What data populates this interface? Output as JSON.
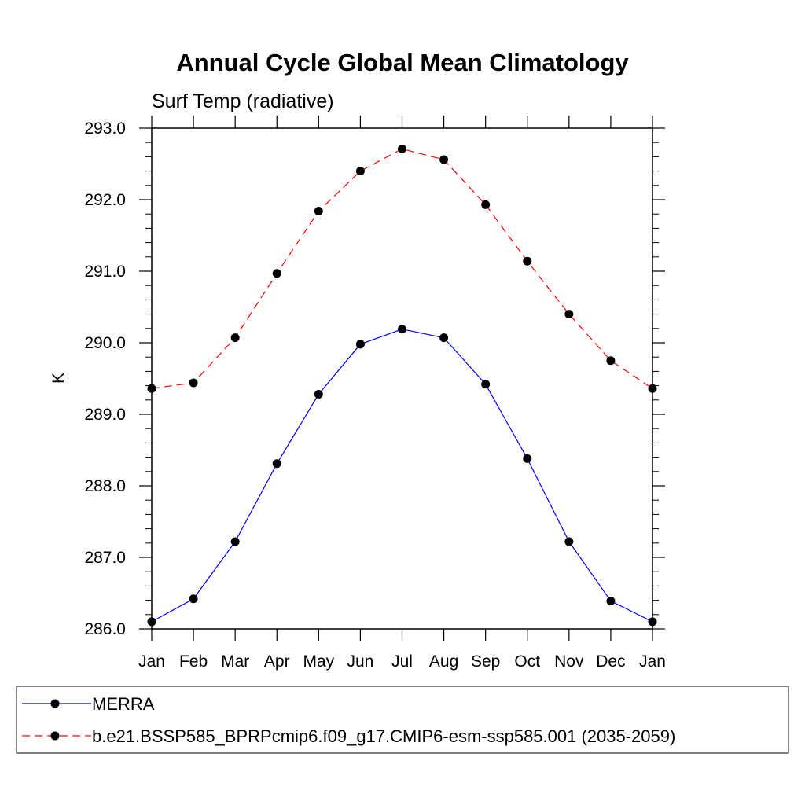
{
  "chart_data": {
    "type": "line",
    "title": "Annual Cycle Global Mean Climatology",
    "subtitle": "Surf Temp (radiative)",
    "xlabel": "",
    "ylabel": "K",
    "categories": [
      "Jan",
      "Feb",
      "Mar",
      "Apr",
      "May",
      "Jun",
      "Jul",
      "Aug",
      "Sep",
      "Oct",
      "Nov",
      "Dec",
      "Jan"
    ],
    "ylim": [
      286.0,
      293.0
    ],
    "yticks": [
      "286.0",
      "287.0",
      "288.0",
      "289.0",
      "290.0",
      "291.0",
      "292.0",
      "293.0"
    ],
    "grid": false,
    "legend_position": "bottom",
    "series": [
      {
        "name": "MERRA",
        "color": "#0000ff",
        "dash": "solid",
        "marker": "filled-circle",
        "values": [
          286.1,
          286.42,
          287.22,
          288.31,
          289.28,
          289.98,
          290.19,
          290.07,
          289.42,
          288.38,
          287.22,
          286.39,
          286.1
        ]
      },
      {
        "name": "b.e21.BSSP585_BPRPcmip6.f09_g17.CMIP6-esm-ssp585.001 (2035-2059)",
        "color": "#ff0000",
        "dash": "dashed",
        "marker": "filled-circle",
        "values": [
          289.36,
          289.44,
          290.07,
          290.97,
          291.84,
          292.4,
          292.71,
          292.56,
          291.93,
          291.14,
          290.4,
          289.75,
          289.36
        ]
      }
    ]
  }
}
